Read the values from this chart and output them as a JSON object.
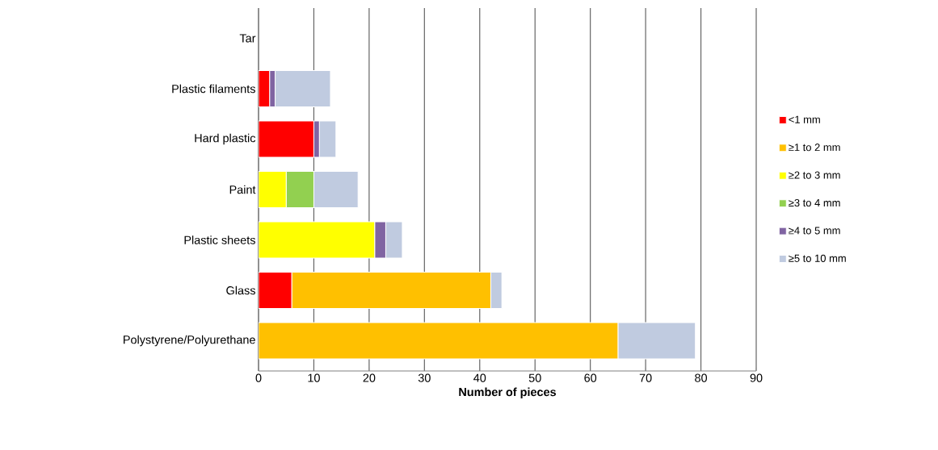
{
  "chart_data": {
    "type": "bar",
    "orientation": "horizontal",
    "stacked": true,
    "xlabel": "Number of pieces",
    "categories": [
      "Tar",
      "Plastic filaments",
      "Hard plastic",
      "Paint",
      "Plastic sheets",
      "Glass",
      "Polystyrene/Polyurethane"
    ],
    "series": [
      {
        "name": "<1 mm",
        "color": "#ff0000",
        "values": [
          0,
          2,
          10,
          0,
          0,
          6,
          0
        ]
      },
      {
        "name": "≥1 to 2 mm",
        "color": "#ffc000",
        "values": [
          0,
          0,
          0,
          0,
          0,
          36,
          65
        ]
      },
      {
        "name": "≥2 to 3 mm",
        "color": "#ffff00",
        "values": [
          0,
          0,
          0,
          5,
          21,
          0,
          0
        ]
      },
      {
        "name": "≥3 to 4 mm",
        "color": "#92d050",
        "values": [
          0,
          0,
          0,
          5,
          0,
          0,
          0
        ]
      },
      {
        "name": "≥4 to 5 mm",
        "color": "#8064a2",
        "values": [
          0,
          1,
          1,
          0,
          2,
          0,
          0
        ]
      },
      {
        "name": "≥5 to 10 mm",
        "color": "#c0cbe0",
        "values": [
          0,
          10,
          3,
          8,
          3,
          2,
          14
        ]
      }
    ],
    "xlim": [
      0,
      90
    ],
    "xticks": [
      0,
      10,
      20,
      30,
      40,
      50,
      60,
      70,
      80,
      90
    ],
    "grid": "x",
    "legend": "right"
  }
}
